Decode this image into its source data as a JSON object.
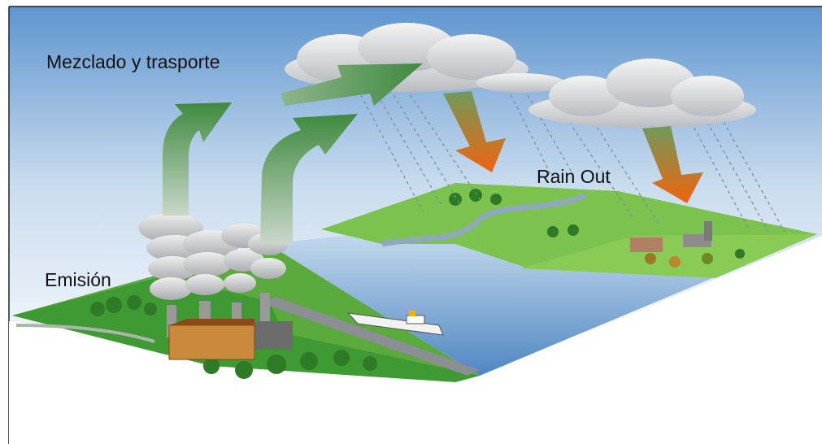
{
  "labels": {
    "mixing": "Mezclado y trasporte",
    "rain_out": "Rain Out",
    "emission": "Emisión"
  }
}
